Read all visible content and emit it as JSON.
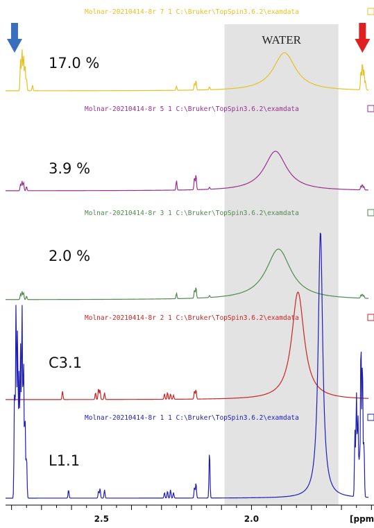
{
  "chart_data": {
    "type": "line",
    "title": "",
    "xlabel": "[ppm",
    "ylabel": "",
    "x_reversed": true,
    "xlim": [
      2.82,
      1.61
    ],
    "xticks": [
      {
        "value": 2.5,
        "label": "2.5"
      },
      {
        "value": 2.0,
        "label": "2.0"
      }
    ],
    "grid": false,
    "shaded_region": {
      "from": 2.09,
      "to": 1.71,
      "label": "WATER"
    },
    "arrows": [
      {
        "x": 2.79,
        "color": "#3a6fc0",
        "direction": "down"
      },
      {
        "x": 1.63,
        "color": "#e02020",
        "direction": "down"
      }
    ],
    "series": [
      {
        "name": "17.0 %",
        "header": "Molnar-20210414-8r  7  1  C:\\Bruker\\TopSpin3.6.2\\examdata",
        "color": "#e8c020",
        "water_center": 1.89,
        "water_height": 55,
        "water_width": 0.045,
        "peaks": [
          [
            2.77,
            45
          ],
          [
            2.765,
            60
          ],
          [
            2.76,
            52
          ],
          [
            2.755,
            38
          ],
          [
            2.75,
            18
          ],
          [
            2.73,
            8
          ],
          [
            2.25,
            6
          ],
          [
            2.19,
            10
          ],
          [
            2.185,
            14
          ],
          [
            2.14,
            4
          ],
          [
            1.635,
            28
          ],
          [
            1.63,
            40
          ],
          [
            1.625,
            30
          ],
          [
            1.62,
            12
          ]
        ]
      },
      {
        "name": "3.9 %",
        "header": "Molnar-20210414-8r  5  1  C:\\Bruker\\TopSpin3.6.2\\examdata",
        "color": "#9a2f8e",
        "water_center": 1.92,
        "water_height": 57,
        "water_width": 0.045,
        "peaks": [
          [
            2.77,
            10
          ],
          [
            2.765,
            14
          ],
          [
            2.76,
            12
          ],
          [
            2.75,
            6
          ],
          [
            2.25,
            14
          ],
          [
            2.19,
            18
          ],
          [
            2.185,
            22
          ],
          [
            2.14,
            3
          ],
          [
            1.635,
            6
          ],
          [
            1.63,
            8
          ],
          [
            1.625,
            5
          ]
        ]
      },
      {
        "name": "2.0 %",
        "header": "Molnar-20210414-8r  3  1  C:\\Bruker\\TopSpin3.6.2\\examdata",
        "color": "#4f8a4f",
        "water_center": 1.91,
        "water_height": 73,
        "water_width": 0.05,
        "peaks": [
          [
            2.77,
            8
          ],
          [
            2.765,
            12
          ],
          [
            2.76,
            10
          ],
          [
            2.75,
            5
          ],
          [
            2.25,
            8
          ],
          [
            2.19,
            12
          ],
          [
            2.185,
            16
          ],
          [
            2.14,
            3
          ],
          [
            1.635,
            5
          ],
          [
            1.63,
            6
          ],
          [
            1.625,
            4
          ]
        ]
      },
      {
        "name": "C3.1",
        "header": "Molnar-20210414-8r  2  1  C:\\Bruker\\TopSpin3.6.2\\examdata",
        "color": "#c82424",
        "water_center": 1.845,
        "water_height": 155,
        "water_width": 0.025,
        "peaks": [
          [
            2.63,
            12
          ],
          [
            2.52,
            10
          ],
          [
            2.51,
            16
          ],
          [
            2.505,
            14
          ],
          [
            2.49,
            10
          ],
          [
            2.29,
            8
          ],
          [
            2.28,
            10
          ],
          [
            2.27,
            8
          ],
          [
            2.26,
            6
          ],
          [
            2.19,
            12
          ],
          [
            2.185,
            14
          ]
        ]
      },
      {
        "name": "L1.1",
        "header": "Molnar-20210414-8r  1  1  C:\\Bruker\\TopSpin3.6.2\\examdata",
        "color": "#1d1db5",
        "water_center": 1.77,
        "water_height": 385,
        "water_width": 0.009,
        "peaks": [
          [
            2.79,
            160
          ],
          [
            2.785,
            285
          ],
          [
            2.78,
            240
          ],
          [
            2.775,
            180
          ],
          [
            2.77,
            220
          ],
          [
            2.765,
            280
          ],
          [
            2.76,
            200
          ],
          [
            2.755,
            120
          ],
          [
            2.75,
            60
          ],
          [
            2.61,
            12
          ],
          [
            2.51,
            10
          ],
          [
            2.505,
            14
          ],
          [
            2.49,
            12
          ],
          [
            2.29,
            8
          ],
          [
            2.28,
            10
          ],
          [
            2.27,
            12
          ],
          [
            2.26,
            8
          ],
          [
            2.19,
            16
          ],
          [
            2.185,
            22
          ],
          [
            2.14,
            68
          ],
          [
            1.655,
            95
          ],
          [
            1.65,
            150
          ],
          [
            1.645,
            120
          ],
          [
            1.64,
            60
          ],
          [
            1.635,
            230
          ],
          [
            1.63,
            200
          ],
          [
            1.625,
            80
          ]
        ]
      }
    ]
  }
}
